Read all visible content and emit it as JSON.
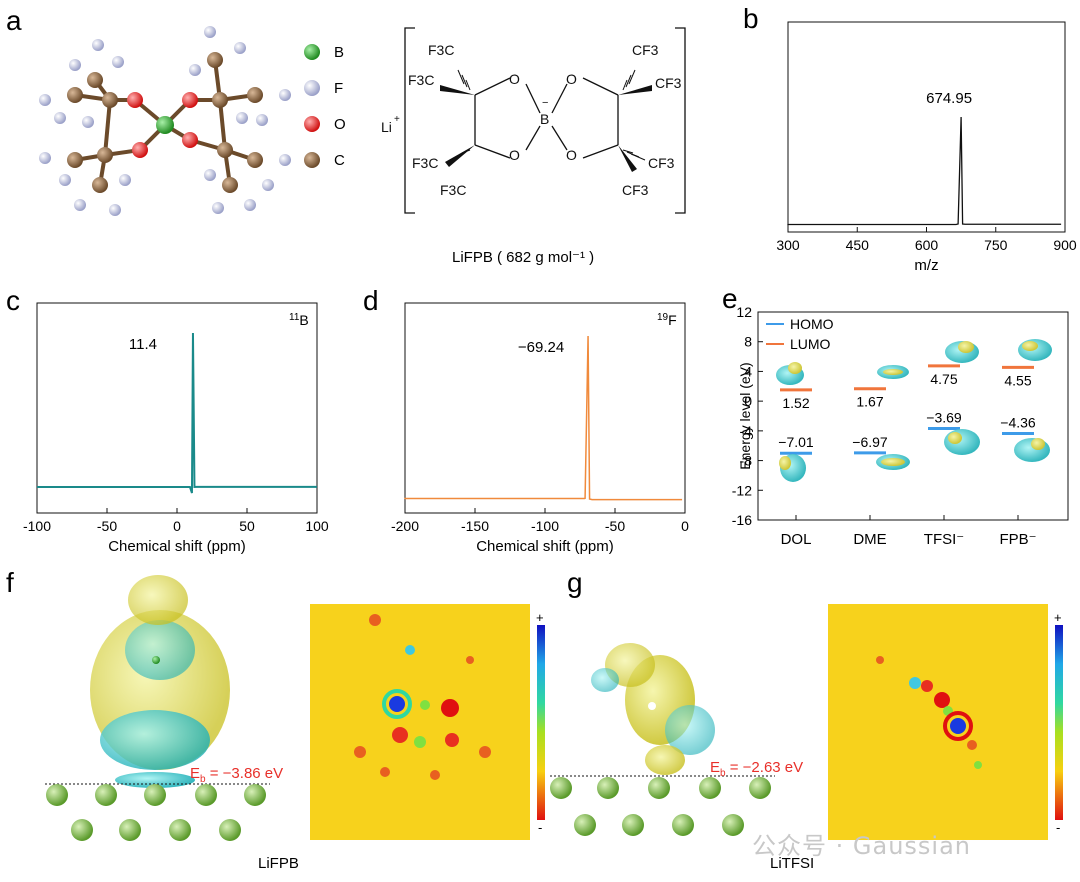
{
  "panels": {
    "a": "a",
    "b": "b",
    "c": "c",
    "d": "d",
    "e": "e",
    "f": "f",
    "g": "g"
  },
  "legend_atoms": [
    {
      "label": "B",
      "color": "#3aa63a"
    },
    {
      "label": "F",
      "color": "#c8cce6"
    },
    {
      "label": "O",
      "color": "#e02020"
    },
    {
      "label": "C",
      "color": "#8b6a4a"
    }
  ],
  "structure": {
    "li": "Li",
    "li_charge": "+",
    "o": "O",
    "b": "B",
    "b_charge": "−",
    "cf3_left": "F3C",
    "cf3_right": "CF3",
    "caption": "LiFPB ( 682 g mol⁻¹ )"
  },
  "chart_data": [
    {
      "id": "b",
      "type": "line",
      "xlabel": "m/z",
      "xlim": [
        300,
        900
      ],
      "xticks": [
        "300",
        "450",
        "600",
        "750",
        "900"
      ],
      "peak_x": 674.95,
      "annotation": "674.95",
      "color": "#111111"
    },
    {
      "id": "c",
      "type": "line",
      "nucleus": "11B",
      "nucleus_mass": "11",
      "nucleus_symbol": "B",
      "xlabel": "Chemical shift (ppm)",
      "xlim": [
        -100,
        100
      ],
      "xticks": [
        "-100",
        "-50",
        "0",
        "50",
        "100"
      ],
      "peak_x": 11.4,
      "annotation": "11.4",
      "color": "#1a8a8a"
    },
    {
      "id": "d",
      "type": "line",
      "nucleus": "19F",
      "nucleus_mass": "19",
      "nucleus_symbol": "F",
      "xlabel": "Chemical shift (ppm)",
      "xlim": [
        -200,
        0
      ],
      "xticks": [
        "-200",
        "-150",
        "-100",
        "-50",
        "0"
      ],
      "peak_x": -69.24,
      "annotation": "−69.24",
      "color": "#f08a3c"
    },
    {
      "id": "e",
      "type": "scatter",
      "ylabel": "Energy level (eV)",
      "ylim": [
        -16,
        12
      ],
      "yticks": [
        "12",
        "8",
        "4",
        "0",
        "-4",
        "-8",
        "-12",
        "-16"
      ],
      "categories": [
        "DOL",
        "DME",
        "TFSI⁻",
        "FPB⁻"
      ],
      "series": [
        {
          "name": "HOMO",
          "values": [
            -7.01,
            -6.97,
            -3.69,
            -4.36
          ],
          "labels": [
            "−7.01",
            "−6.97",
            "−3.69",
            "−4.36"
          ],
          "color": "#3d9be9"
        },
        {
          "name": "LUMO",
          "values": [
            1.52,
            1.67,
            4.75,
            4.55
          ],
          "labels": [
            "1.52",
            "1.67",
            "4.75",
            "4.55"
          ],
          "color": "#f0753c"
        }
      ]
    }
  ],
  "adsorption": [
    {
      "id": "f",
      "energy_label": "E",
      "energy_sub": "b",
      "energy_value": " = −3.86 eV",
      "caption": "LiFPB",
      "scale_plus": "+",
      "scale_minus": "-"
    },
    {
      "id": "g",
      "energy_label": "E",
      "energy_sub": "b",
      "energy_value": " = −2.63 eV",
      "caption": "LiTFSI",
      "scale_plus": "+",
      "scale_minus": "-"
    }
  ],
  "watermark": "公众号 · Gaussian",
  "colors": {
    "energy_text": "#e8302a",
    "map_bg": "#f7d21c",
    "atom_surface": "#66bb44"
  }
}
